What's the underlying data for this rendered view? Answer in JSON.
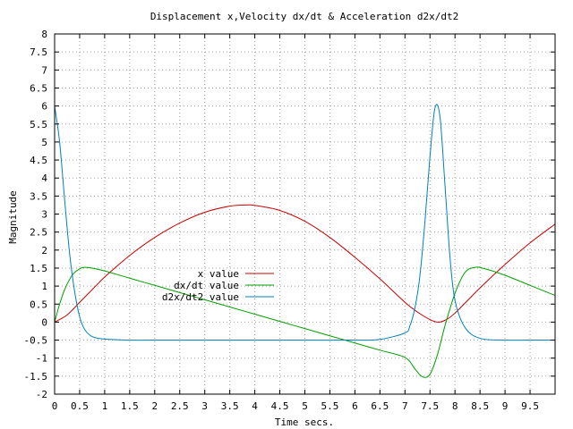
{
  "chart_data": {
    "type": "line",
    "title": "Displacement x,Velocity dx/dt & Acceleration d2x/dt2",
    "xlabel": "Time secs.",
    "ylabel": "Magnitude",
    "xlim": [
      0,
      10
    ],
    "ylim": [
      -2,
      8
    ],
    "x_ticks": [
      0,
      0.5,
      1,
      1.5,
      2,
      2.5,
      3,
      3.5,
      4,
      4.5,
      5,
      5.5,
      6,
      6.5,
      7,
      7.5,
      8,
      8.5,
      9,
      9.5
    ],
    "x_tick_labels": [
      "0",
      "0.5",
      "1",
      "1.5",
      "2",
      "2.5",
      "3",
      "3.5",
      "4",
      "4.5",
      "5",
      "5.5",
      "6",
      "6.5",
      "7",
      "7.5",
      "8",
      "8.5",
      "9",
      "9.5"
    ],
    "y_ticks": [
      -2,
      -1.5,
      -1,
      -0.5,
      0,
      0.5,
      1,
      1.5,
      2,
      2.5,
      3,
      3.5,
      4,
      4.5,
      5,
      5.5,
      6,
      6.5,
      7,
      7.5,
      8
    ],
    "y_tick_labels": [
      "-2",
      "-1.5",
      "-1",
      "-0.5",
      "0",
      "0.5",
      "1",
      "1.5",
      "2",
      "2.5",
      "3",
      "3.5",
      "4",
      "4.5",
      "5",
      "5.5",
      "6",
      "6.5",
      "7",
      "7.5",
      "8"
    ],
    "grid": true,
    "legend_position": "center-left",
    "series": [
      {
        "name": "x value",
        "color": "#cc0000",
        "x": [
          0,
          0.25,
          0.5,
          0.75,
          1,
          1.5,
          2,
          2.5,
          3,
          3.5,
          3.8,
          4,
          4.5,
          5,
          5.5,
          6,
          6.5,
          7,
          7.25,
          7.5,
          7.65,
          7.8,
          8,
          8.5,
          9,
          9.5,
          10
        ],
        "y": [
          0,
          0.2,
          0.55,
          0.9,
          1.25,
          1.85,
          2.35,
          2.75,
          3.05,
          3.22,
          3.25,
          3.24,
          3.1,
          2.8,
          2.35,
          1.8,
          1.2,
          0.55,
          0.28,
          0.07,
          0,
          0.05,
          0.25,
          0.95,
          1.6,
          2.2,
          2.72
        ]
      },
      {
        "name": "dx/dt value",
        "color": "#00a000",
        "x": [
          0,
          0.1,
          0.2,
          0.35,
          0.5,
          0.6,
          0.75,
          1,
          1.5,
          2,
          2.5,
          3,
          3.5,
          4,
          4.5,
          5,
          5.5,
          6,
          6.5,
          7,
          7.2,
          7.35,
          7.5,
          7.65,
          7.8,
          8,
          8.2,
          8.4,
          8.6,
          9,
          9.5,
          10
        ],
        "y": [
          0,
          0.5,
          0.9,
          1.3,
          1.48,
          1.52,
          1.5,
          1.42,
          1.22,
          1.02,
          0.82,
          0.62,
          0.42,
          0.22,
          0.02,
          -0.18,
          -0.38,
          -0.58,
          -0.78,
          -0.98,
          -1.3,
          -1.52,
          -1.45,
          -0.9,
          -0.1,
          0.8,
          1.38,
          1.52,
          1.48,
          1.3,
          1.02,
          0.74
        ]
      },
      {
        "name": "d2x/dt2 value",
        "color": "#0080c0",
        "x": [
          0,
          0.1,
          0.2,
          0.3,
          0.4,
          0.5,
          0.6,
          0.75,
          1,
          1.5,
          2,
          3,
          4,
          5,
          6,
          6.5,
          7,
          7.1,
          7.2,
          7.3,
          7.4,
          7.5,
          7.6,
          7.7,
          7.8,
          7.9,
          8,
          8.2,
          8.5,
          9,
          9.5,
          10
        ],
        "y": [
          6,
          5.0,
          3.4,
          1.9,
          0.85,
          0.15,
          -0.2,
          -0.4,
          -0.47,
          -0.5,
          -0.5,
          -0.5,
          -0.5,
          -0.5,
          -0.5,
          -0.48,
          -0.3,
          -0.1,
          0.4,
          1.3,
          2.8,
          4.6,
          5.95,
          5.7,
          3.8,
          1.8,
          0.6,
          -0.15,
          -0.45,
          -0.5,
          -0.5,
          -0.5
        ]
      }
    ]
  }
}
